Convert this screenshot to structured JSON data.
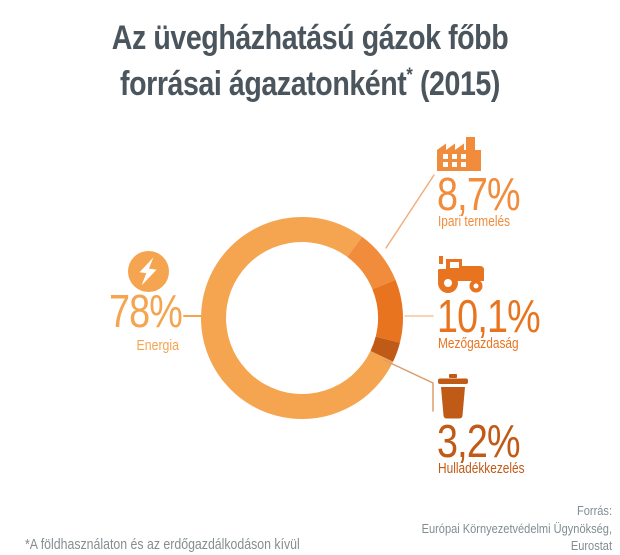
{
  "title": {
    "line1": "Az üvegházhatású gázok főbb",
    "line2_pre": "forrásai ágazatonként",
    "line2_sup": "*",
    "line2_post": " (2015)"
  },
  "chart_data": {
    "type": "donut",
    "title": "Az üvegházhatású gázok főbb forrásai ágazatonként (2015)",
    "unit": "%",
    "start_angle_deg": 36.5,
    "direction": "clockwise",
    "segments": [
      {
        "id": "ipari",
        "label": "Ipari termelés",
        "value": 8.7,
        "display": "8,7%",
        "color": "#F08C3B",
        "icon": "factory-icon"
      },
      {
        "id": "mezo",
        "label": "Mezőgazdaság",
        "value": 10.1,
        "display": "10,1%",
        "color": "#E97420",
        "icon": "tractor-icon"
      },
      {
        "id": "hulladek",
        "label": "Hulladékkezelés",
        "value": 3.2,
        "display": "3,2%",
        "color": "#C05A17",
        "icon": "trash-icon"
      },
      {
        "id": "energia",
        "label": "Energia",
        "value": 78,
        "display": "78%",
        "color": "#F5A44F",
        "icon": "lightning-icon"
      }
    ]
  },
  "colors": {
    "title_text": "#4A555D",
    "footer_text": "#808D91",
    "background": "#FFFFFF",
    "connector_energia": "#F5A44F",
    "connector_ipari": "#F3AE7C",
    "connector_mezo": "#F7C69C",
    "connector_hulladek": "#DC9E6E",
    "icon_glyph_white": "#FFFFFF"
  },
  "footer": {
    "source_heading": "Forrás:",
    "source_line1": "Európai Környezetvédelmi Ügynökség,",
    "source_line2": "Eurostat",
    "footnote": "*A földhasználaton és az erdőgazdálkodáson kívül"
  }
}
